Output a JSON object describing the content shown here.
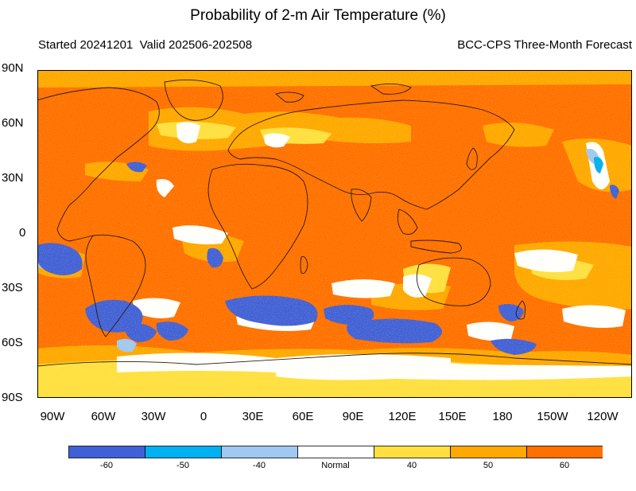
{
  "title": "Probability of 2-m Air Temperature (%)",
  "subtitle_left": "Started 20241201  Valid 202506-202508",
  "subtitle_right": "BCC-CPS Three-Month Forecast",
  "lat_labels": [
    "90N",
    "60N",
    "30N",
    "0",
    "30S",
    "60S",
    "90S"
  ],
  "lon_labels": [
    "90W",
    "60W",
    "30W",
    "0",
    "30E",
    "60E",
    "90E",
    "120E",
    "150E",
    "180",
    "150W",
    "120W"
  ],
  "colorbar": {
    "labels": [
      "-60",
      "-50",
      "-40",
      "Normal",
      "40",
      "50",
      "60"
    ],
    "colors": [
      "#4060d8",
      "#00b0f0",
      "#a0c8f0",
      "#ffffff",
      "#ffe040",
      "#ffa800",
      "#ff7000"
    ]
  },
  "colors": {
    "warm_strong": "#ff7000",
    "warm_mid": "#ffa800",
    "warm_weak": "#ffe040",
    "normal": "#ffffff",
    "cool_weak": "#a0c8f0",
    "cool_mid": "#00b0f0",
    "cool_strong": "#4060d8",
    "coast": "#2a1a10"
  }
}
